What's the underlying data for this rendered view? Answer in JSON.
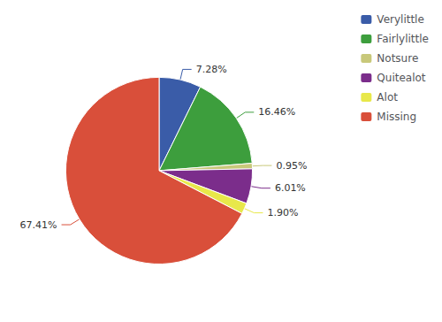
{
  "chart_data": {
    "type": "pie",
    "categories": [
      "Verylittle",
      "Fairlylittle",
      "Notsure",
      "Quitealot",
      "Alot",
      "Missing"
    ],
    "values": [
      7.28,
      16.46,
      0.95,
      6.01,
      1.9,
      67.41
    ],
    "value_labels": [
      "7.28%",
      "16.46%",
      "0.95%",
      "6.01%",
      "1.90%",
      "67.41%"
    ],
    "colors": [
      "#3a5ca8",
      "#3d9e3d",
      "#c8c87a",
      "#7b2d8b",
      "#e8e84a",
      "#d94f3a"
    ],
    "data_labels": true,
    "legend": "upper right"
  }
}
